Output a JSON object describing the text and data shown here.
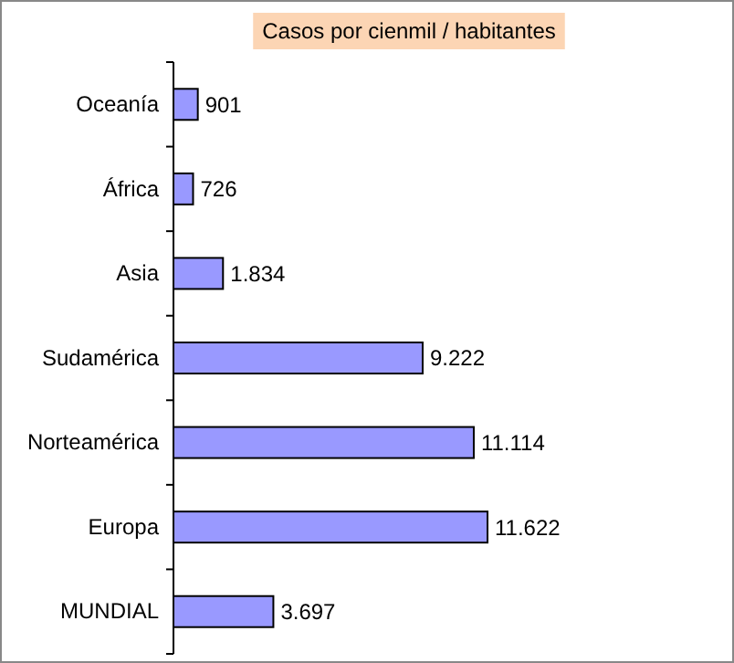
{
  "chart_data": {
    "type": "bar",
    "orientation": "horizontal",
    "title": "Casos por cienmil / habitantes",
    "categories": [
      "Oceanía",
      "África",
      "Asia",
      "Sudamérica",
      "Norteamérica",
      "Europa",
      "MUNDIAL"
    ],
    "values": [
      901,
      726,
      1834,
      9222,
      11114,
      11622,
      3697
    ],
    "value_labels": [
      "901",
      "726",
      "1.834",
      "9.222",
      "11.114",
      "11.622",
      "3.697"
    ],
    "color": "#9999ff",
    "grid": false
  }
}
